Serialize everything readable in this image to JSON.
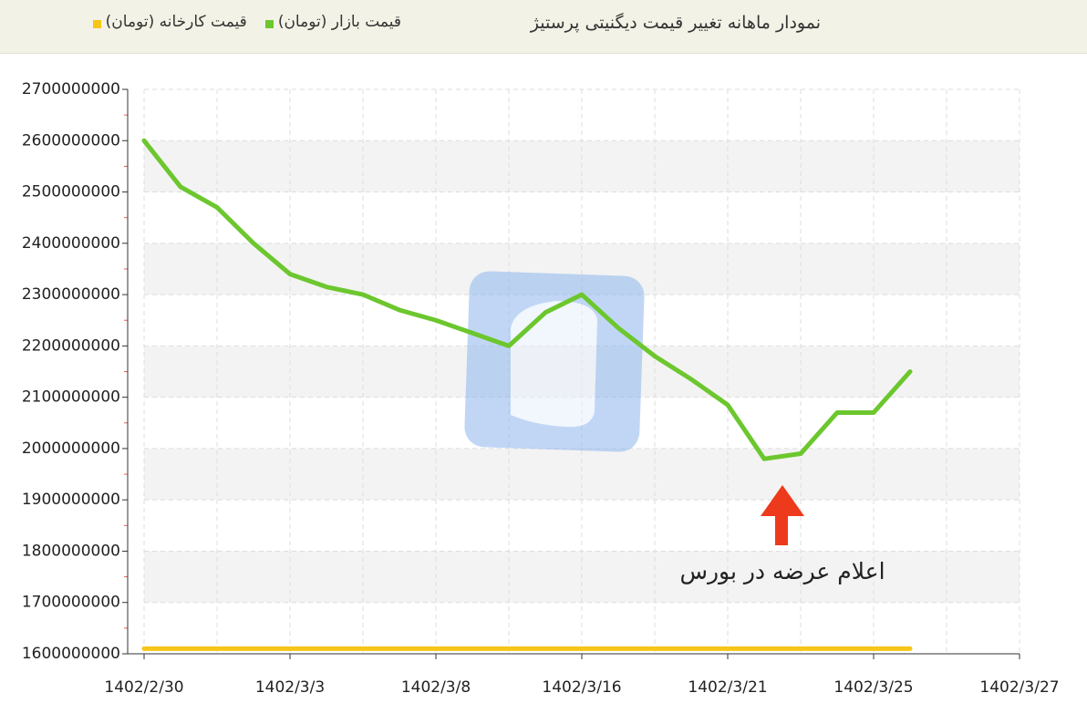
{
  "chart_data": {
    "type": "line",
    "title": "نمودار ماهانه تغییر قیمت دیگنیتی پرستیژ",
    "categories": [
      "1402/2/30",
      null,
      null,
      null,
      "1402/3/3",
      null,
      null,
      null,
      "1402/3/8",
      null,
      null,
      null,
      "1402/3/16",
      null,
      null,
      null,
      "1402/3/21",
      null,
      null,
      null,
      "1402/3/25",
      null,
      null,
      null,
      "1402/3/27"
    ],
    "series": [
      {
        "name": "قیمت بازار (تومان)",
        "color": "#6cc72e",
        "values": [
          2600000000,
          2510000000,
          2470000000,
          2400000000,
          2340000000,
          2315000000,
          2300000000,
          2270000000,
          2250000000,
          2225000000,
          2200000000,
          2265000000,
          2300000000,
          2235000000,
          2180000000,
          2135000000,
          2085000000,
          1980000000,
          1990000000,
          2070000000,
          2070000000,
          2150000000,
          null,
          null,
          null
        ]
      },
      {
        "name": "قیمت کارخانه (تومان)",
        "color": "#f5c518",
        "values": [
          1610000000,
          1610000000,
          1610000000,
          1610000000,
          1610000000,
          1610000000,
          1610000000,
          1610000000,
          1610000000,
          1610000000,
          1610000000,
          1610000000,
          1610000000,
          1610000000,
          1610000000,
          1610000000,
          1610000000,
          1610000000,
          1610000000,
          1610000000,
          1610000000,
          1610000000,
          null,
          null,
          null
        ]
      }
    ],
    "ylim": [
      1600000000,
      2700000000
    ],
    "yticks": [
      1600000000,
      1700000000,
      1800000000,
      1900000000,
      2000000000,
      2100000000,
      2200000000,
      2300000000,
      2400000000,
      2500000000,
      2600000000,
      2700000000
    ],
    "grid": true,
    "annotation": "اعلام عرضه در بورس"
  }
}
